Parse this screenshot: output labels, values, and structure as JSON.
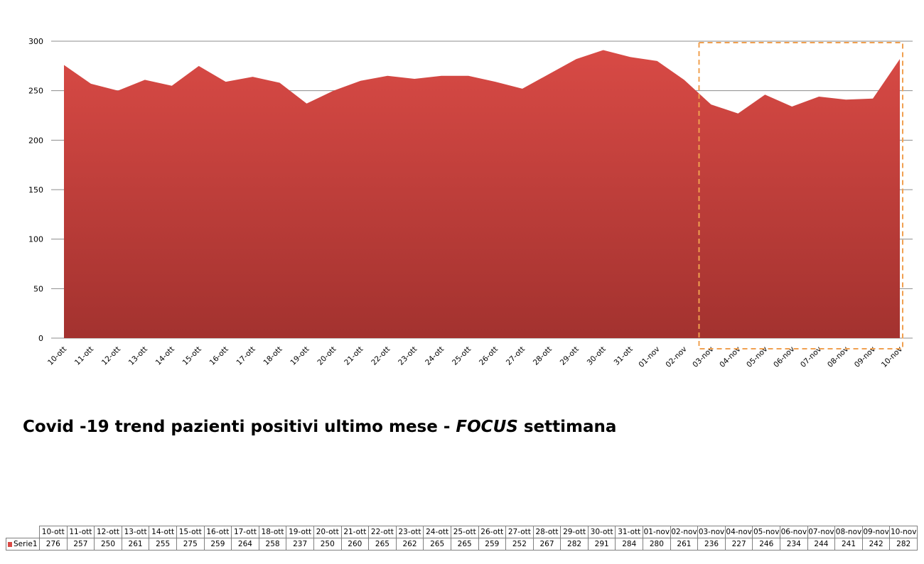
{
  "title": {
    "part1": "Covid -19 trend pazienti positivi ultimo mese - ",
    "focus": "FOCUS",
    "part2": " settimana"
  },
  "colors": {
    "area_top": "#d84a45",
    "area_bottom": "#a3322f",
    "focus_box": "#f0a050",
    "gridline": "#8c8c8c"
  },
  "chart_data": {
    "type": "area",
    "categories": [
      "10-ott",
      "11-ott",
      "12-ott",
      "13-ott",
      "14-ott",
      "15-ott",
      "16-ott",
      "17-ott",
      "18-ott",
      "19-ott",
      "20-ott",
      "21-ott",
      "22-ott",
      "23-ott",
      "24-ott",
      "25-ott",
      "26-ott",
      "27-ott",
      "28-ott",
      "29-ott",
      "30-ott",
      "31-ott",
      "01-nov",
      "02-nov",
      "03-nov",
      "04-nov",
      "05-nov",
      "06-nov",
      "07-nov",
      "08-nov",
      "09-nov",
      "10-nov"
    ],
    "series": [
      {
        "name": "Serie1",
        "values": [
          276,
          257,
          250,
          261,
          255,
          275,
          259,
          264,
          258,
          237,
          250,
          260,
          265,
          262,
          265,
          265,
          259,
          252,
          267,
          282,
          291,
          284,
          280,
          261,
          236,
          227,
          246,
          234,
          244,
          241,
          242,
          282
        ]
      }
    ],
    "ylim": [
      0,
      300
    ],
    "yticks": [
      0,
      50,
      100,
      150,
      200,
      250,
      300
    ],
    "grid": true,
    "legend": "data-table",
    "highlight": {
      "from": "03-nov",
      "to": "10-nov",
      "style": "dashed-box"
    }
  }
}
